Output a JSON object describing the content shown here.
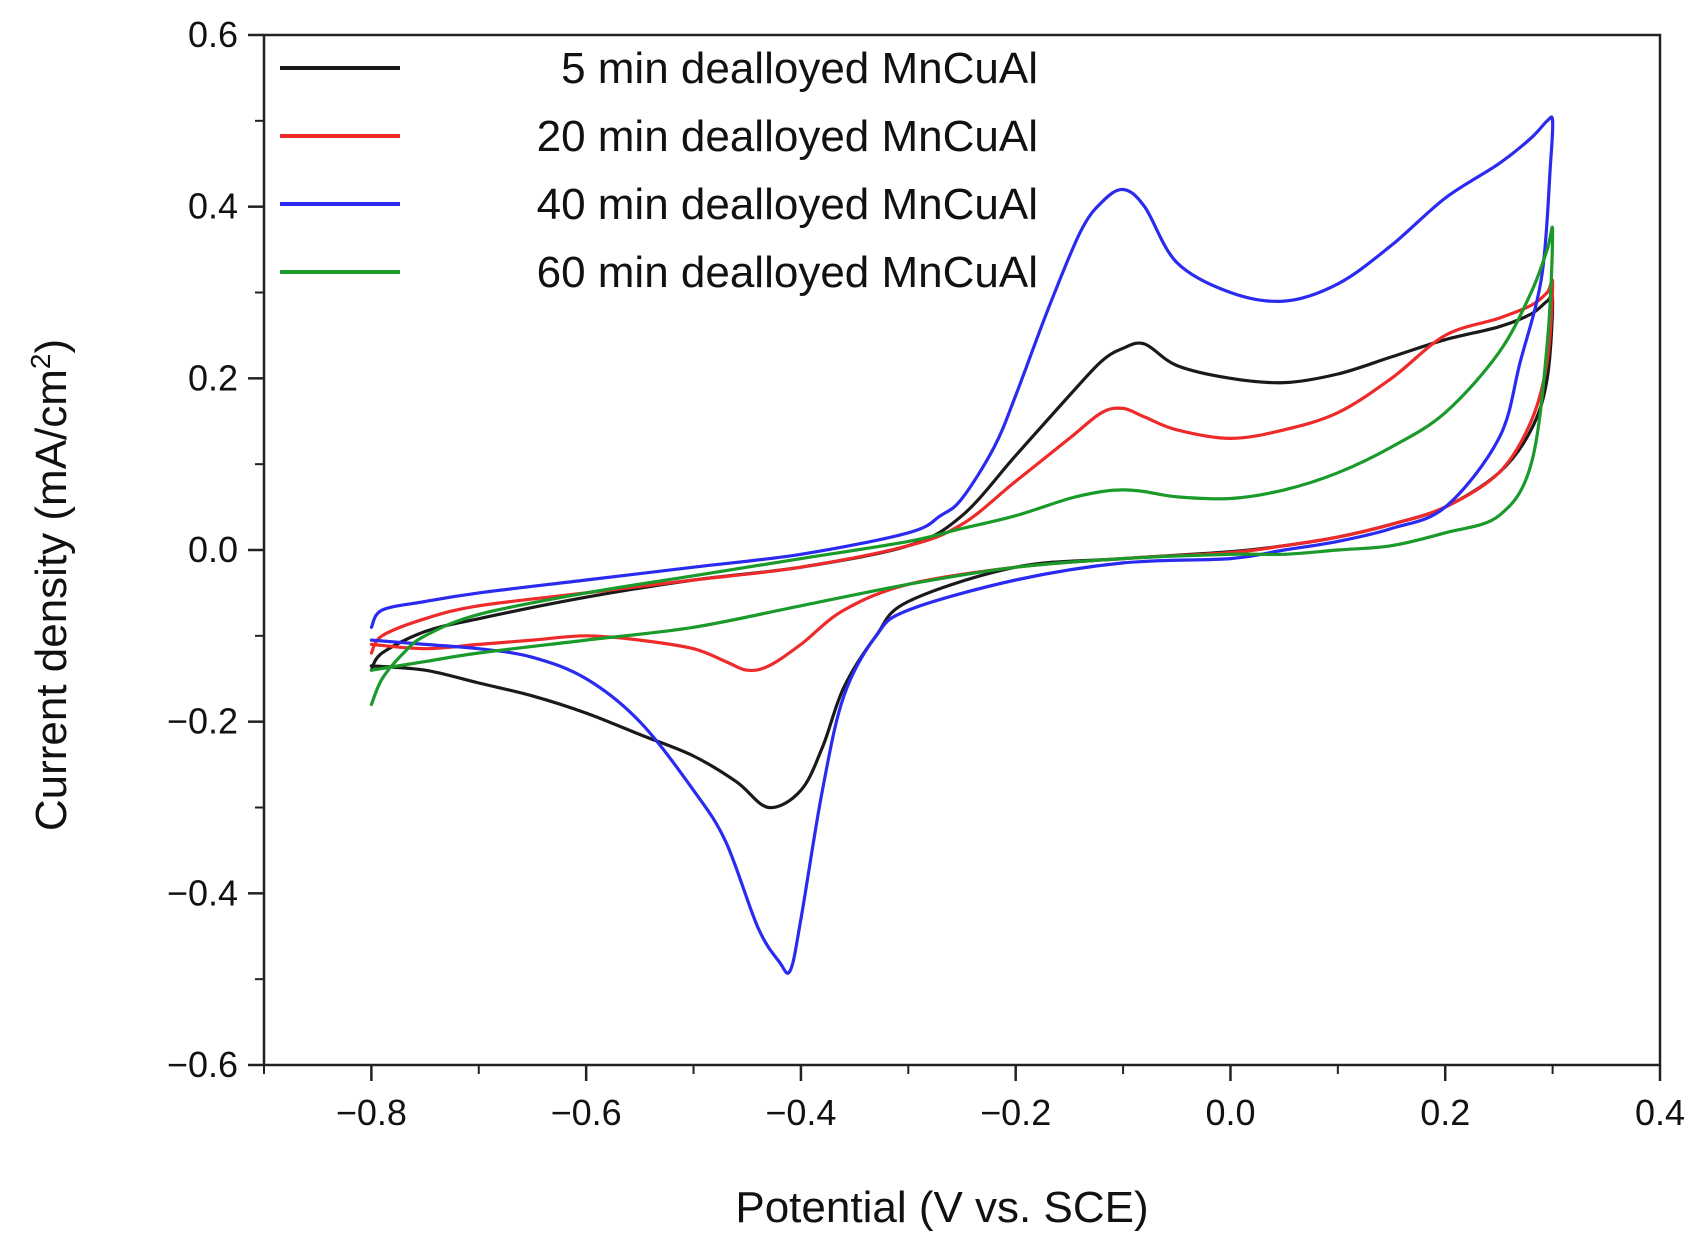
{
  "chart_data": {
    "type": "line",
    "title": "",
    "xlabel": "Potential (V vs. SCE)",
    "ylabel_main": "Current density (mA/cm",
    "ylabel_sup": "2",
    "ylabel_close": ")",
    "xlim": [
      -0.9,
      0.4
    ],
    "ylim": [
      -0.6,
      0.6
    ],
    "xticks": [
      -0.8,
      -0.6,
      -0.4,
      -0.2,
      0.0,
      0.2,
      0.4
    ],
    "xtick_labels": [
      "−0.8",
      "−0.6",
      "−0.4",
      "−0.2",
      "0.0",
      "0.2",
      "0.4"
    ],
    "yticks": [
      -0.6,
      -0.4,
      -0.2,
      0.0,
      0.2,
      0.4,
      0.6
    ],
    "ytick_labels": [
      "−0.6",
      "−0.4",
      "−0.2",
      "0.0",
      "0.2",
      "0.4",
      "0.6"
    ],
    "minor_xticks": [
      -0.9,
      -0.7,
      -0.5,
      -0.3,
      -0.1,
      0.1,
      0.3
    ],
    "minor_yticks": [
      -0.5,
      -0.3,
      -0.1,
      0.1,
      0.3,
      0.5
    ],
    "grid": false,
    "legend_position": "top-left",
    "series": [
      {
        "name": "5 min dealloyed MnCuAl",
        "color": "#1a1a1a",
        "x": [
          -0.8,
          -0.79,
          -0.75,
          -0.7,
          -0.6,
          -0.5,
          -0.4,
          -0.3,
          -0.25,
          -0.2,
          -0.15,
          -0.12,
          -0.1,
          -0.08,
          -0.05,
          0.0,
          0.05,
          0.1,
          0.15,
          0.2,
          0.25,
          0.28,
          0.295,
          0.3,
          0.295,
          0.28,
          0.25,
          0.2,
          0.15,
          0.1,
          0.05,
          0.0,
          -0.1,
          -0.2,
          -0.3,
          -0.33,
          -0.36,
          -0.38,
          -0.4,
          -0.43,
          -0.46,
          -0.5,
          -0.55,
          -0.6,
          -0.65,
          -0.7,
          -0.75,
          -0.8
        ],
        "y": [
          -0.14,
          -0.12,
          -0.095,
          -0.08,
          -0.055,
          -0.035,
          -0.02,
          0.005,
          0.04,
          0.11,
          0.18,
          0.22,
          0.235,
          0.24,
          0.215,
          0.2,
          0.195,
          0.205,
          0.225,
          0.245,
          0.26,
          0.275,
          0.29,
          0.29,
          0.2,
          0.14,
          0.09,
          0.05,
          0.03,
          0.015,
          0.005,
          -0.002,
          -0.01,
          -0.02,
          -0.06,
          -0.1,
          -0.16,
          -0.23,
          -0.28,
          -0.3,
          -0.27,
          -0.24,
          -0.215,
          -0.19,
          -0.17,
          -0.155,
          -0.14,
          -0.135
        ]
      },
      {
        "name": "20 min dealloyed MnCuAl",
        "color": "#ee2a2a",
        "x": [
          -0.8,
          -0.79,
          -0.75,
          -0.7,
          -0.6,
          -0.5,
          -0.4,
          -0.3,
          -0.25,
          -0.2,
          -0.15,
          -0.12,
          -0.1,
          -0.08,
          -0.05,
          0.0,
          0.05,
          0.1,
          0.15,
          0.2,
          0.25,
          0.28,
          0.295,
          0.3,
          0.295,
          0.28,
          0.25,
          0.2,
          0.15,
          0.1,
          0.05,
          0.0,
          -0.1,
          -0.2,
          -0.3,
          -0.36,
          -0.4,
          -0.43,
          -0.45,
          -0.47,
          -0.5,
          -0.55,
          -0.6,
          -0.65,
          -0.7,
          -0.75,
          -0.8
        ],
        "y": [
          -0.12,
          -0.1,
          -0.08,
          -0.065,
          -0.05,
          -0.035,
          -0.02,
          0.005,
          0.03,
          0.08,
          0.13,
          0.16,
          0.165,
          0.155,
          0.14,
          0.13,
          0.14,
          0.16,
          0.2,
          0.25,
          0.27,
          0.285,
          0.3,
          0.31,
          0.22,
          0.15,
          0.09,
          0.05,
          0.03,
          0.015,
          0.005,
          -0.003,
          -0.01,
          -0.02,
          -0.04,
          -0.07,
          -0.11,
          -0.135,
          -0.14,
          -0.13,
          -0.115,
          -0.105,
          -0.1,
          -0.105,
          -0.11,
          -0.115,
          -0.11
        ]
      },
      {
        "name": "40 min dealloyed MnCuAl",
        "color": "#2a2af0",
        "x": [
          -0.8,
          -0.79,
          -0.75,
          -0.7,
          -0.6,
          -0.5,
          -0.4,
          -0.3,
          -0.27,
          -0.25,
          -0.22,
          -0.2,
          -0.17,
          -0.14,
          -0.12,
          -0.1,
          -0.08,
          -0.05,
          0.0,
          0.05,
          0.1,
          0.15,
          0.2,
          0.25,
          0.28,
          0.295,
          0.3,
          0.298,
          0.29,
          0.27,
          0.25,
          0.2,
          0.15,
          0.1,
          0.05,
          0.0,
          -0.1,
          -0.2,
          -0.3,
          -0.33,
          -0.36,
          -0.38,
          -0.4,
          -0.41,
          -0.42,
          -0.44,
          -0.47,
          -0.5,
          -0.55,
          -0.6,
          -0.65,
          -0.7,
          -0.75,
          -0.8
        ],
        "y": [
          -0.09,
          -0.07,
          -0.06,
          -0.05,
          -0.035,
          -0.02,
          -0.005,
          0.02,
          0.04,
          0.06,
          0.12,
          0.18,
          0.28,
          0.37,
          0.405,
          0.42,
          0.4,
          0.335,
          0.3,
          0.29,
          0.31,
          0.355,
          0.41,
          0.45,
          0.48,
          0.5,
          0.5,
          0.45,
          0.32,
          0.22,
          0.13,
          0.05,
          0.025,
          0.01,
          0.0,
          -0.01,
          -0.015,
          -0.035,
          -0.07,
          -0.1,
          -0.17,
          -0.28,
          -0.43,
          -0.49,
          -0.48,
          -0.44,
          -0.34,
          -0.28,
          -0.2,
          -0.15,
          -0.125,
          -0.115,
          -0.11,
          -0.105
        ]
      },
      {
        "name": "60 min dealloyed MnCuAl",
        "color": "#1a9a2a",
        "x": [
          -0.8,
          -0.79,
          -0.77,
          -0.75,
          -0.7,
          -0.6,
          -0.5,
          -0.4,
          -0.3,
          -0.25,
          -0.2,
          -0.15,
          -0.12,
          -0.1,
          -0.08,
          -0.05,
          0.0,
          0.05,
          0.1,
          0.15,
          0.2,
          0.25,
          0.28,
          0.295,
          0.3,
          0.295,
          0.28,
          0.25,
          0.2,
          0.15,
          0.1,
          0.05,
          0.0,
          -0.1,
          -0.2,
          -0.3,
          -0.4,
          -0.5,
          -0.6,
          -0.7,
          -0.75,
          -0.8
        ],
        "y": [
          -0.18,
          -0.15,
          -0.12,
          -0.1,
          -0.075,
          -0.05,
          -0.03,
          -0.01,
          0.01,
          0.025,
          0.04,
          0.06,
          0.068,
          0.07,
          0.068,
          0.062,
          0.06,
          0.07,
          0.09,
          0.12,
          0.16,
          0.23,
          0.3,
          0.35,
          0.37,
          0.24,
          0.1,
          0.04,
          0.02,
          0.005,
          0.0,
          -0.005,
          -0.005,
          -0.01,
          -0.02,
          -0.04,
          -0.065,
          -0.09,
          -0.105,
          -0.12,
          -0.13,
          -0.14
        ]
      }
    ]
  }
}
